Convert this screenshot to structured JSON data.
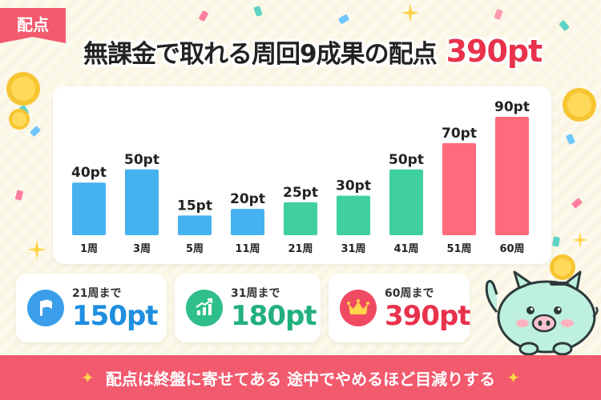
{
  "tag": "配点",
  "title": "無課金で取れる周回9成果の配点",
  "title_total": "390pt",
  "chart_data": {
    "type": "bar",
    "categories": [
      "1周",
      "3周",
      "5周",
      "11周",
      "21周",
      "31周",
      "41周",
      "51周",
      "60周"
    ],
    "values": [
      40,
      50,
      15,
      20,
      25,
      30,
      50,
      70,
      90
    ],
    "value_labels": [
      "40pt",
      "50pt",
      "15pt",
      "20pt",
      "25pt",
      "30pt",
      "50pt",
      "70pt",
      "90pt"
    ],
    "unit": "pt",
    "colors": [
      "#45b1ef",
      "#45b1ef",
      "#45b1ef",
      "#45b1ef",
      "#3fd09d",
      "#3fd09d",
      "#3fd09d",
      "#ff6a7d",
      "#ff6a7d"
    ],
    "ylim": [
      0,
      90
    ],
    "grid": false,
    "legend": "none"
  },
  "summaries": [
    {
      "label": "21周まで",
      "value": "150pt",
      "color": "#1f8ee0",
      "icon": "flag-icon"
    },
    {
      "label": "31周まで",
      "value": "180pt",
      "color": "#22b07d",
      "icon": "growth-chart-icon"
    },
    {
      "label": "60周まで",
      "value": "390pt",
      "color": "#e8324c",
      "icon": "crown-icon"
    }
  ],
  "footer": "配点は終盤に寄せてある 途中でやめるほど目減りする"
}
